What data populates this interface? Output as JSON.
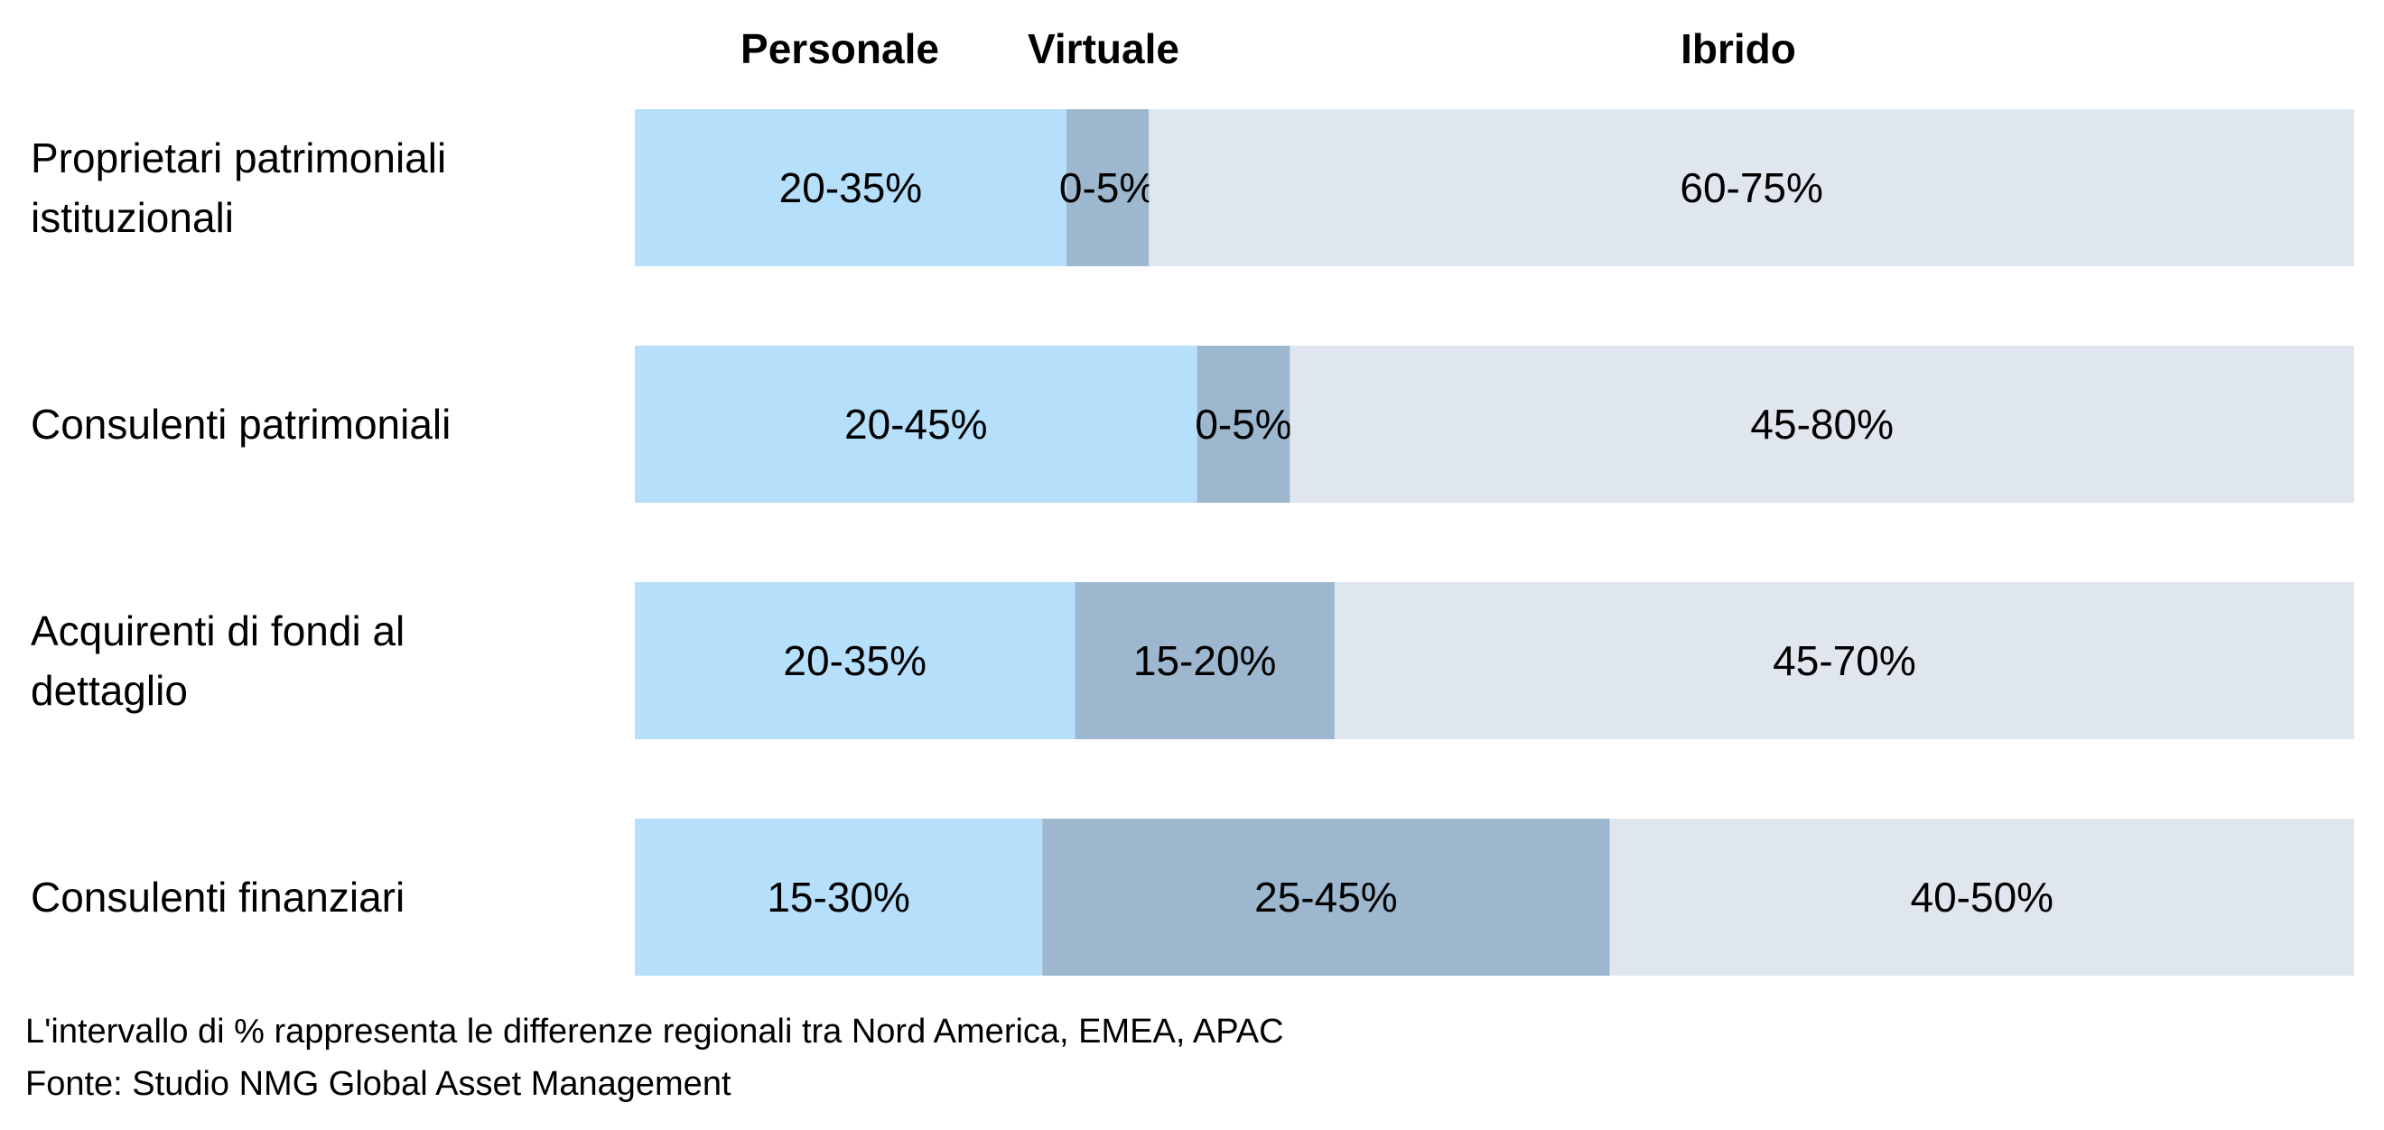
{
  "chart_data": {
    "type": "bar",
    "orientation": "horizontal",
    "stacked": true,
    "headers": [
      "Personale",
      "Virtuale",
      "Ibrido"
    ],
    "colors": {
      "Personale": "#b5dffb",
      "Virtuale": "#9db8ce",
      "Ibrido": "#dfe6ee"
    },
    "rows": [
      {
        "label_lines": [
          "Proprietari patrimoniali",
          "istituzionali"
        ],
        "segments": [
          {
            "series": "Personale",
            "label": "20-35%",
            "share": 0.251
          },
          {
            "series": "Virtuale",
            "label": "0-5%",
            "share": 0.048
          },
          {
            "series": "Ibrido",
            "label": "60-75%",
            "share": 0.701
          }
        ]
      },
      {
        "label_lines": [
          "Consulenti patrimoniali"
        ],
        "segments": [
          {
            "series": "Personale",
            "label": "20-45%",
            "share": 0.327
          },
          {
            "series": "Virtuale",
            "label": "0-5%",
            "share": 0.054
          },
          {
            "series": "Ibrido",
            "label": "45-80%",
            "share": 0.619
          }
        ]
      },
      {
        "label_lines": [
          "Acquirenti di fondi al",
          "dettaglio"
        ],
        "segments": [
          {
            "series": "Personale",
            "label": "20-35%",
            "share": 0.256
          },
          {
            "series": "Virtuale",
            "label": "15-20%",
            "share": 0.151
          },
          {
            "series": "Ibrido",
            "label": "45-70%",
            "share": 0.593
          }
        ]
      },
      {
        "label_lines": [
          "Consulenti finanziari"
        ],
        "segments": [
          {
            "series": "Personale",
            "label": "15-30%",
            "share": 0.237
          },
          {
            "series": "Virtuale",
            "label": "25-45%",
            "share": 0.33
          },
          {
            "series": "Ibrido",
            "label": "40-50%",
            "share": 0.433
          }
        ]
      }
    ]
  },
  "footnote": "L'intervallo di % rappresenta le differenze regionali tra Nord America, EMEA, APAC",
  "source": "Fonte: Studio NMG Global Asset Management"
}
